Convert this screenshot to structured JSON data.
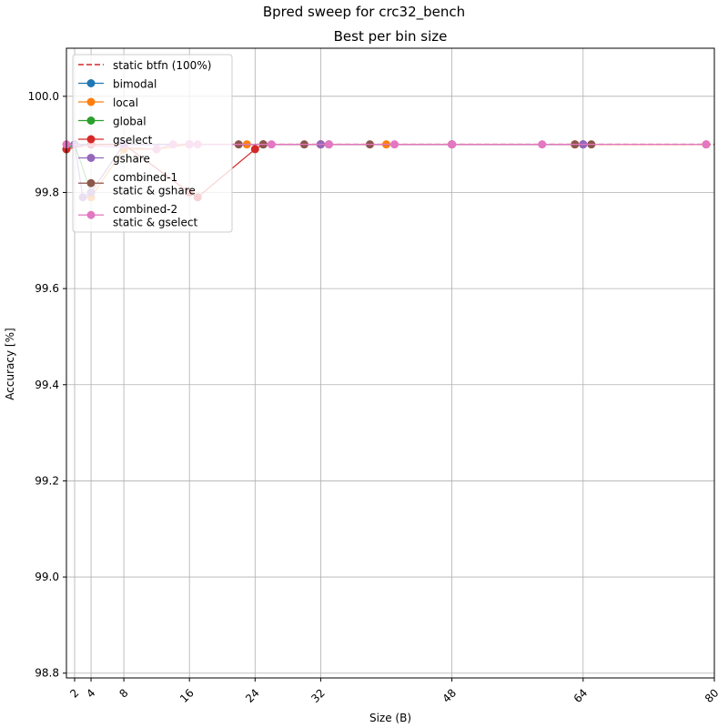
{
  "chart_data": {
    "type": "line",
    "suptitle": "Bpred sweep for crc32_bench",
    "title": "Best per bin size",
    "xlabel": "Size (B)",
    "ylabel": "Accuracy [%]",
    "xlim": [
      1,
      80
    ],
    "ylim": [
      98.79,
      100.1
    ],
    "xticks": [
      2,
      4,
      8,
      16,
      24,
      32,
      48,
      64,
      80
    ],
    "xtick_labels": [
      "2",
      "4",
      "8",
      "16",
      "24",
      "32",
      "48",
      "64",
      "80"
    ],
    "yticks": [
      98.8,
      99.0,
      99.2,
      99.4,
      99.6,
      99.8,
      100.0
    ],
    "ytick_labels": [
      "98.8",
      "99.0",
      "99.2",
      "99.4",
      "99.6",
      "99.8",
      "100.0"
    ],
    "grid": true,
    "legend_position": "upper-left",
    "reference_line": {
      "name": "static btfn (100%)",
      "y": 99.9,
      "color": "#d62728",
      "style": "dashed"
    },
    "series": [
      {
        "name": "bimodal",
        "color": "#1f77b4",
        "x": [
          2,
          4,
          8,
          16,
          32,
          64
        ],
        "y": [
          99.9,
          99.9,
          99.9,
          99.9,
          99.9,
          99.9
        ]
      },
      {
        "name": "local",
        "color": "#ff7f0e",
        "x": [
          4,
          8,
          12,
          16,
          23,
          25,
          32,
          40,
          48,
          63,
          79
        ],
        "y": [
          99.79,
          99.89,
          99.89,
          99.9,
          99.9,
          99.9,
          99.9,
          99.9,
          99.9,
          99.9,
          99.9
        ]
      },
      {
        "name": "global",
        "color": "#2ca02c",
        "x": [
          1,
          2,
          4,
          8
        ],
        "y": [
          99.89,
          99.9,
          99.8,
          99.9
        ]
      },
      {
        "name": "gselect",
        "color": "#d62728",
        "x": [
          1,
          4,
          8,
          16,
          17,
          24,
          25,
          32,
          48,
          64
        ],
        "y": [
          99.89,
          99.9,
          99.9,
          99.8,
          99.79,
          99.89,
          99.9,
          99.9,
          99.9,
          99.9
        ]
      },
      {
        "name": "gshare",
        "color": "#9467bd",
        "x": [
          2,
          3,
          4,
          8,
          16,
          25,
          32,
          48,
          64
        ],
        "y": [
          99.9,
          99.79,
          99.8,
          99.9,
          99.9,
          99.9,
          99.9,
          99.9,
          99.9
        ]
      },
      {
        "name": "combined-1\nstatic & gshare",
        "color": "#8c564b",
        "x": [
          22,
          25,
          30,
          33,
          38,
          63,
          65
        ],
        "y": [
          99.9,
          99.9,
          99.9,
          99.9,
          99.9,
          99.9,
          99.9
        ]
      },
      {
        "name": "combined-2\nstatic & gselect",
        "color": "#e377c2",
        "x": [
          1,
          12,
          14,
          16,
          17,
          26,
          33,
          41,
          48,
          59,
          79
        ],
        "y": [
          99.9,
          99.89,
          99.9,
          99.9,
          99.9,
          99.9,
          99.9,
          99.9,
          99.9,
          99.9,
          99.9
        ]
      }
    ]
  }
}
